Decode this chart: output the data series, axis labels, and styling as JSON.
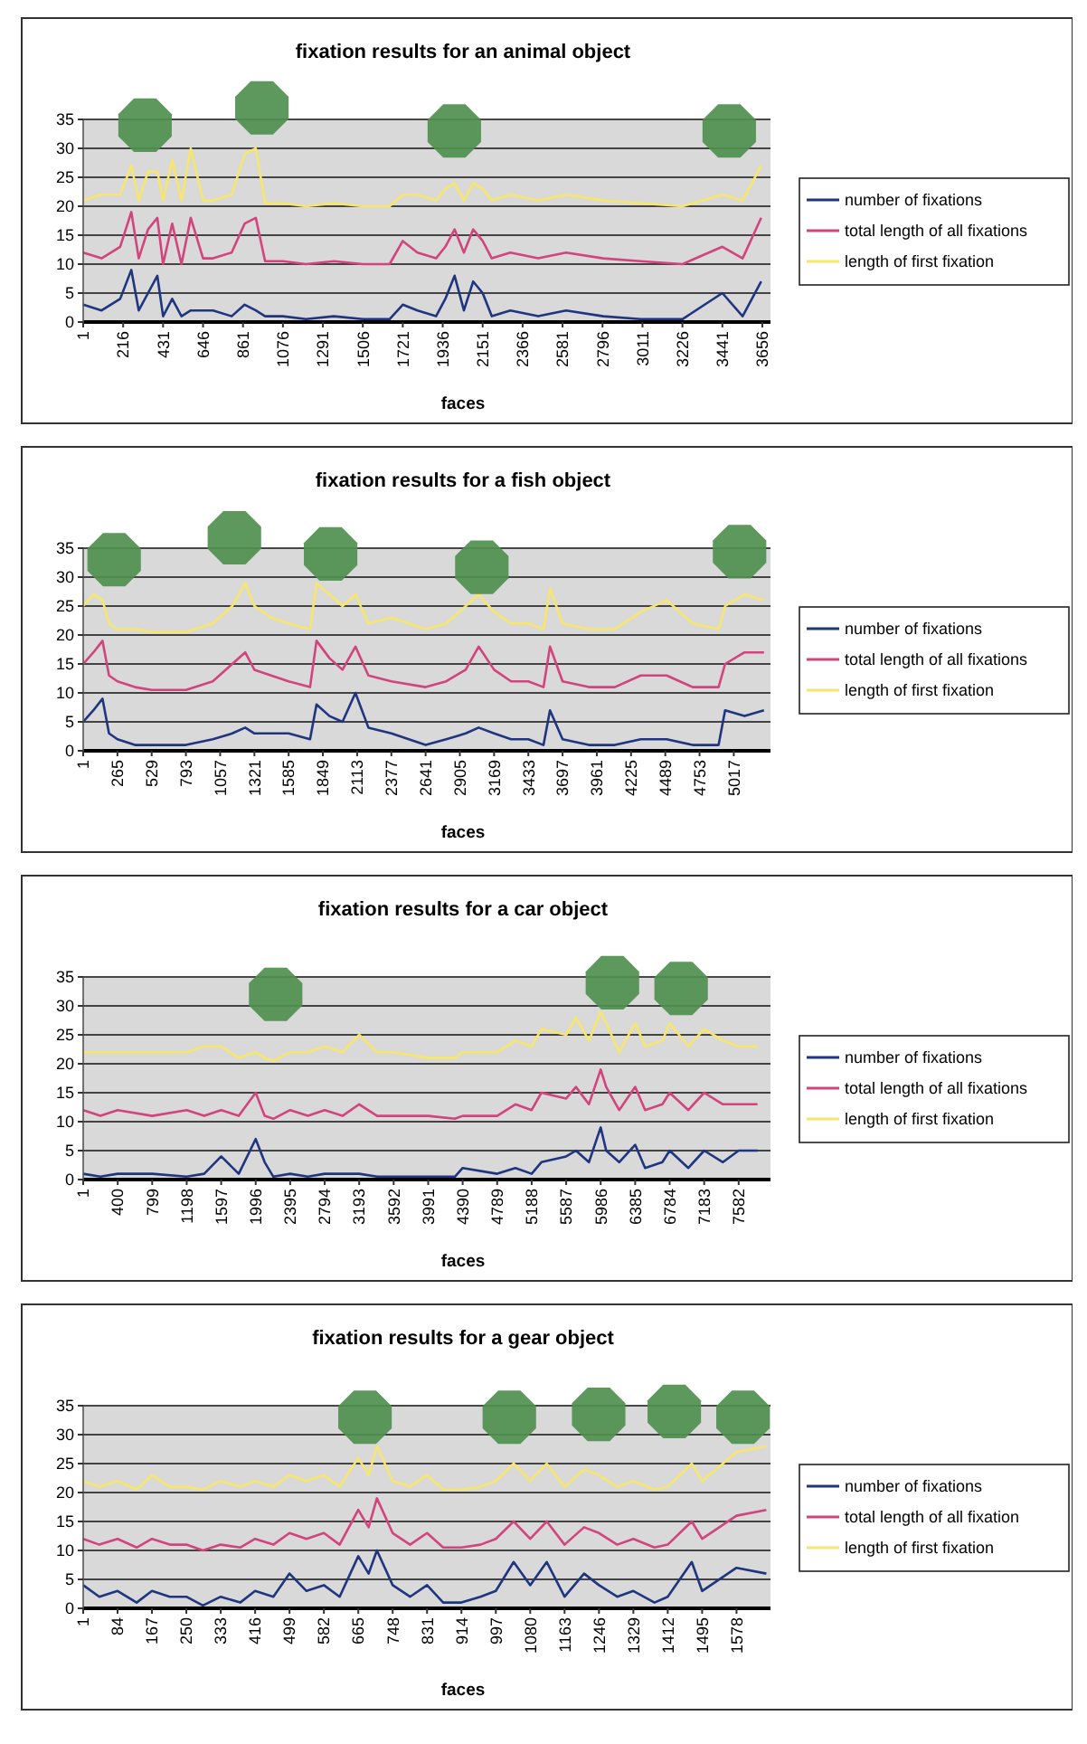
{
  "chart_data": [
    {
      "type": "line",
      "title": "fixation results for an animal object",
      "xlabel": "faces",
      "legend": "right",
      "grid": "y",
      "xlim": [
        1,
        3700
      ],
      "xticks": [
        1,
        216,
        431,
        646,
        861,
        1076,
        1291,
        1506,
        1721,
        1936,
        2151,
        2366,
        2581,
        2796,
        3011,
        3226,
        3441,
        3656
      ],
      "ylim": [
        0,
        35
      ],
      "yticks": [
        0,
        5,
        10,
        15,
        20,
        25,
        30,
        35
      ],
      "x": [
        1,
        100,
        200,
        260,
        300,
        350,
        400,
        431,
        480,
        530,
        580,
        646,
        700,
        800,
        870,
        930,
        980,
        1076,
        1200,
        1350,
        1506,
        1650,
        1721,
        1800,
        1900,
        1950,
        2000,
        2050,
        2100,
        2151,
        2200,
        2300,
        2450,
        2600,
        2800,
        3000,
        3226,
        3441,
        3550,
        3650
      ],
      "series": [
        {
          "name": "number of fixations",
          "color": "#1f3580",
          "values": [
            3,
            2,
            4,
            9,
            2,
            5,
            8,
            1,
            4,
            1,
            2,
            2,
            2,
            1,
            3,
            2,
            1,
            1,
            0.5,
            1,
            0.5,
            0.5,
            3,
            2,
            1,
            4,
            8,
            2,
            7,
            5,
            1,
            2,
            1,
            2,
            1,
            0.5,
            0.5,
            5,
            1,
            7
          ]
        },
        {
          "name": "total length of all fixations",
          "color": "#d2447c",
          "values": [
            12,
            11,
            13,
            19,
            11,
            16,
            18,
            10,
            17,
            10,
            18,
            11,
            11,
            12,
            17,
            18,
            10.5,
            10.5,
            10,
            10.5,
            10,
            10,
            14,
            12,
            11,
            13,
            16,
            12,
            16,
            14,
            11,
            12,
            11,
            12,
            11,
            10.5,
            10,
            13,
            11,
            18
          ]
        },
        {
          "name": "length of first fixation",
          "color": "#f6e66c",
          "values": [
            21,
            22,
            22,
            27,
            21,
            26,
            26,
            21,
            28,
            21,
            30,
            21,
            21,
            22,
            29,
            30,
            20.5,
            20.5,
            20,
            20.5,
            20,
            20,
            22,
            22,
            21,
            23,
            24,
            21,
            24,
            23,
            21,
            22,
            21,
            22,
            21,
            20.5,
            20,
            22,
            21,
            27
          ]
        }
      ]
    },
    {
      "type": "line",
      "title": "fixation results for a fish object",
      "xlabel": "faces",
      "legend": "right",
      "grid": "y",
      "xlim": [
        1,
        5300
      ],
      "xticks": [
        1,
        265,
        529,
        793,
        1057,
        1321,
        1585,
        1849,
        2113,
        2377,
        2641,
        2905,
        3169,
        3433,
        3697,
        3961,
        4225,
        4489,
        4753,
        5017
      ],
      "ylim": [
        0,
        35
      ],
      "yticks": [
        0,
        5,
        10,
        15,
        20,
        25,
        30,
        35
      ],
      "x": [
        1,
        80,
        150,
        200,
        265,
        400,
        529,
        793,
        1000,
        1150,
        1250,
        1321,
        1450,
        1585,
        1750,
        1800,
        1900,
        2000,
        2100,
        2200,
        2377,
        2641,
        2800,
        2950,
        3050,
        3169,
        3300,
        3433,
        3550,
        3600,
        3697,
        3900,
        4100,
        4300,
        4500,
        4700,
        4900,
        4950,
        5100,
        5250
      ],
      "series": [
        {
          "name": "number of fixations",
          "color": "#1f3580",
          "values": [
            5,
            7,
            9,
            3,
            2,
            1,
            1,
            1,
            2,
            3,
            4,
            3,
            3,
            3,
            2,
            8,
            6,
            5,
            10,
            4,
            3,
            1,
            2,
            3,
            4,
            3,
            2,
            2,
            1,
            7,
            2,
            1,
            1,
            2,
            2,
            1,
            1,
            7,
            6,
            7
          ]
        },
        {
          "name": "total length of all fixations",
          "color": "#d2447c",
          "values": [
            15,
            17,
            19,
            13,
            12,
            11,
            10.5,
            10.5,
            12,
            15,
            17,
            14,
            13,
            12,
            11,
            19,
            16,
            14,
            18,
            13,
            12,
            11,
            12,
            14,
            18,
            14,
            12,
            12,
            11,
            18,
            12,
            11,
            11,
            13,
            13,
            11,
            11,
            15,
            17,
            17
          ]
        },
        {
          "name": "length of first fixation",
          "color": "#f6e66c",
          "values": [
            25,
            27,
            26,
            22,
            21,
            21,
            20.5,
            20.5,
            22,
            25,
            29,
            25,
            23,
            22,
            21,
            29,
            27,
            25,
            27,
            22,
            23,
            21,
            22,
            25,
            27,
            24,
            22,
            22,
            21,
            28,
            22,
            21,
            21,
            24,
            26,
            22,
            21,
            25,
            27,
            26
          ]
        }
      ]
    },
    {
      "type": "line",
      "title": "fixation results for a car object",
      "xlabel": "faces",
      "legend": "right",
      "grid": "y",
      "xlim": [
        1,
        7950
      ],
      "xticks": [
        1,
        400,
        799,
        1198,
        1597,
        1996,
        2395,
        2794,
        3193,
        3592,
        3991,
        4390,
        4789,
        5188,
        5587,
        5986,
        6385,
        6784,
        7183,
        7582
      ],
      "ylim": [
        0,
        35
      ],
      "yticks": [
        0,
        5,
        10,
        15,
        20,
        25,
        30,
        35
      ],
      "x": [
        1,
        200,
        400,
        799,
        1198,
        1400,
        1597,
        1800,
        1996,
        2100,
        2200,
        2395,
        2600,
        2794,
        3000,
        3193,
        3400,
        3592,
        3991,
        4300,
        4390,
        4789,
        5000,
        5188,
        5300,
        5587,
        5700,
        5850,
        5986,
        6050,
        6200,
        6385,
        6500,
        6700,
        6784,
        7000,
        7183,
        7400,
        7582,
        7800
      ],
      "series": [
        {
          "name": "number of fixations",
          "color": "#1f3580",
          "values": [
            1,
            0.5,
            1,
            1,
            0.5,
            1,
            4,
            1,
            7,
            3,
            0.5,
            1,
            0.5,
            1,
            1,
            1,
            0.5,
            0.5,
            0.5,
            0.5,
            2,
            1,
            2,
            1,
            3,
            4,
            5,
            3,
            9,
            5,
            3,
            6,
            2,
            3,
            5,
            2,
            5,
            3,
            5,
            5
          ]
        },
        {
          "name": "total length of all fixations",
          "color": "#d2447c",
          "values": [
            12,
            11,
            12,
            11,
            12,
            11,
            12,
            11,
            15,
            11,
            10.5,
            12,
            11,
            12,
            11,
            13,
            11,
            11,
            11,
            10.5,
            11,
            11,
            13,
            12,
            15,
            14,
            16,
            13,
            19,
            16,
            12,
            16,
            12,
            13,
            15,
            12,
            15,
            13,
            13,
            13
          ]
        },
        {
          "name": "length of first fixation",
          "color": "#f6e66c",
          "values": [
            22,
            22,
            22,
            22,
            22,
            23,
            23,
            21,
            22,
            21,
            20.5,
            22,
            22,
            23,
            22,
            25,
            22,
            22,
            21,
            21,
            22,
            22,
            24,
            23,
            26,
            25,
            28,
            24,
            29,
            27,
            22,
            27,
            23,
            24,
            27,
            23,
            26,
            24,
            23,
            23
          ]
        }
      ]
    },
    {
      "type": "line",
      "title": "fixation results for a gear object",
      "xlabel": "faces",
      "legend": "right",
      "grid": "y",
      "xlim": [
        1,
        1660
      ],
      "xticks": [
        1,
        84,
        167,
        250,
        333,
        416,
        499,
        582,
        665,
        748,
        831,
        914,
        997,
        1080,
        1163,
        1246,
        1329,
        1412,
        1495,
        1578
      ],
      "ylim": [
        0,
        35
      ],
      "yticks": [
        0,
        5,
        10,
        15,
        20,
        25,
        30,
        35
      ],
      "x": [
        1,
        40,
        84,
        130,
        167,
        210,
        250,
        290,
        333,
        380,
        416,
        460,
        499,
        540,
        582,
        620,
        665,
        690,
        710,
        748,
        790,
        831,
        870,
        914,
        960,
        997,
        1040,
        1080,
        1120,
        1163,
        1210,
        1246,
        1290,
        1329,
        1380,
        1412,
        1470,
        1495,
        1578,
        1650
      ],
      "series": [
        {
          "name": "number of fixations",
          "color": "#1f3580",
          "values": [
            4,
            2,
            3,
            1,
            3,
            2,
            2,
            0.5,
            2,
            1,
            3,
            2,
            6,
            3,
            4,
            2,
            9,
            6,
            10,
            4,
            2,
            4,
            1,
            1,
            2,
            3,
            8,
            4,
            8,
            2,
            6,
            4,
            2,
            3,
            1,
            2,
            8,
            3,
            7,
            6
          ]
        },
        {
          "name": "total length of all fixation",
          "color": "#d2447c",
          "values": [
            12,
            11,
            12,
            10.5,
            12,
            11,
            11,
            10,
            11,
            10.5,
            12,
            11,
            13,
            12,
            13,
            11,
            17,
            14,
            19,
            13,
            11,
            13,
            10.5,
            10.5,
            11,
            12,
            15,
            12,
            15,
            11,
            14,
            13,
            11,
            12,
            10.5,
            11,
            15,
            12,
            16,
            17
          ]
        },
        {
          "name": "length of first fixation",
          "color": "#f6e66c",
          "values": [
            22,
            21,
            22,
            20.5,
            23,
            21,
            21,
            20.5,
            22,
            21,
            22,
            21,
            23,
            22,
            23,
            21,
            26,
            23,
            28,
            22,
            21,
            23,
            20.5,
            20.5,
            21,
            22,
            25,
            22,
            25,
            21,
            24,
            23,
            21,
            22,
            20.5,
            21,
            25,
            22,
            27,
            28
          ]
        }
      ]
    }
  ]
}
